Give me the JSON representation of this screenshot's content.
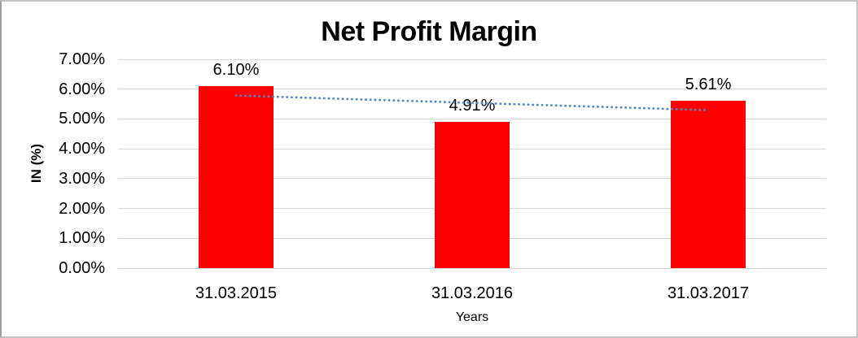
{
  "frame": {
    "background": "#ffffff",
    "border_color": "#c6c6c6"
  },
  "chart_data": {
    "type": "bar",
    "title": "Net Profit Margin",
    "xlabel": "Years",
    "ylabel": "IN (%)",
    "categories": [
      "31.03.2015",
      "31.03.2016",
      "31.03.2017"
    ],
    "values": [
      6.1,
      4.91,
      5.61
    ],
    "data_labels": [
      "6.10%",
      "4.91%",
      "5.61%"
    ],
    "y_ticks": [
      "7.00%",
      "6.00%",
      "5.00%",
      "4.00%",
      "3.00%",
      "2.00%",
      "1.00%",
      "0.00%"
    ],
    "ylim": [
      0,
      7
    ],
    "y_tick_step": 1,
    "grid": true,
    "legend": false,
    "bar_color": "#ff0000",
    "gridline_color": "#d9d9d9",
    "text_color": "#000000",
    "trendline": {
      "type": "linear",
      "style": "dotted",
      "color": "#4e86c5",
      "start_value": 5.785,
      "end_value": 5.295
    }
  }
}
